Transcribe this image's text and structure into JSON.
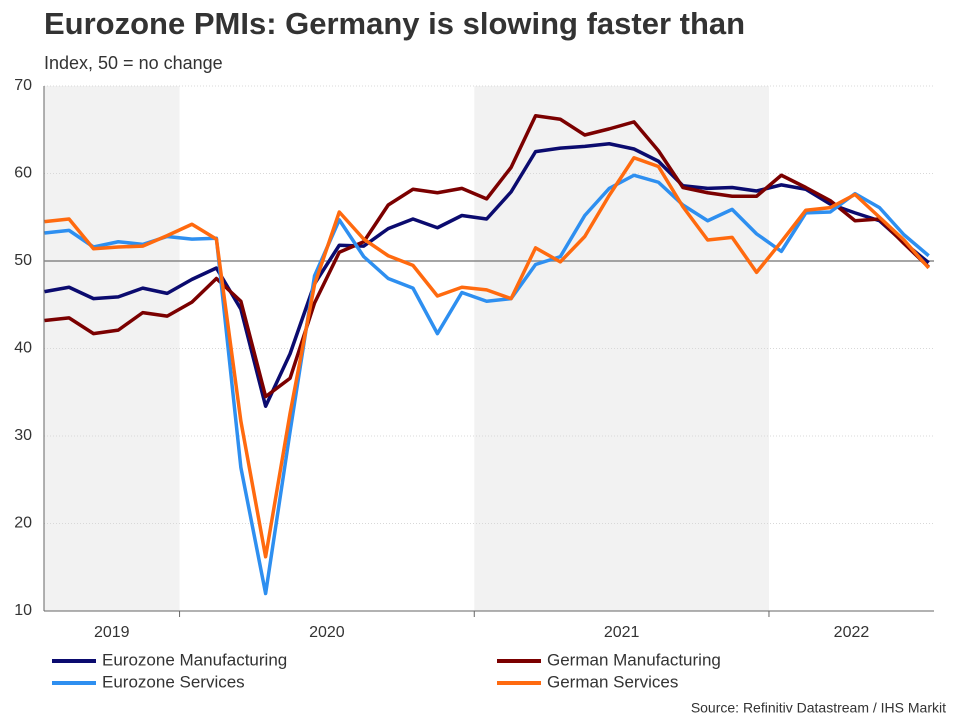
{
  "chart_data": {
    "type": "line",
    "title": "Eurozone PMIs: Germany is slowing faster than",
    "subtitle": "Index, 50 = no change",
    "source": "Source: Refinitiv Datastream / IHS Markit",
    "x": [
      2019.542,
      2019.625,
      2019.708,
      2019.792,
      2019.875,
      2019.958,
      2020.042,
      2020.125,
      2020.208,
      2020.292,
      2020.375,
      2020.458,
      2020.542,
      2020.625,
      2020.708,
      2020.792,
      2020.875,
      2020.958,
      2021.042,
      2021.125,
      2021.208,
      2021.292,
      2021.375,
      2021.458,
      2021.542,
      2021.625,
      2021.708,
      2021.792,
      2021.875,
      2021.958,
      2022.042,
      2022.125,
      2022.208,
      2022.292,
      2022.375,
      2022.458,
      2022.542
    ],
    "series": [
      {
        "name": "Eurozone Manufacturing",
        "color": "#0b0b6f",
        "values": [
          46.5,
          47.0,
          45.7,
          45.9,
          46.9,
          46.3,
          47.9,
          49.2,
          44.5,
          33.4,
          39.4,
          47.4,
          51.8,
          51.7,
          53.7,
          54.8,
          53.8,
          55.2,
          54.8,
          57.9,
          62.5,
          62.9,
          63.1,
          63.4,
          62.8,
          61.4,
          58.6,
          58.3,
          58.4,
          58.0,
          58.7,
          58.2,
          56.5,
          55.5,
          54.6,
          52.1,
          49.8
        ]
      },
      {
        "name": "German Manufacturing",
        "color": "#7b0000",
        "values": [
          43.2,
          43.5,
          41.7,
          42.1,
          44.1,
          43.7,
          45.3,
          48.0,
          45.4,
          34.5,
          36.6,
          45.2,
          51.0,
          52.2,
          56.4,
          58.2,
          57.8,
          58.3,
          57.1,
          60.7,
          66.6,
          66.2,
          64.4,
          65.1,
          65.9,
          62.6,
          58.4,
          57.8,
          57.4,
          57.4,
          59.8,
          58.4,
          56.9,
          54.6,
          54.8,
          52.0,
          49.3
        ]
      },
      {
        "name": "Eurozone Services",
        "color": "#2e8ff0",
        "values": [
          53.2,
          53.5,
          51.6,
          52.2,
          51.9,
          52.8,
          52.5,
          52.6,
          26.4,
          12.0,
          30.5,
          48.3,
          54.7,
          50.5,
          48.0,
          46.9,
          41.7,
          46.4,
          45.4,
          45.7,
          49.6,
          50.5,
          55.2,
          58.3,
          59.8,
          59.0,
          56.4,
          54.6,
          55.9,
          53.1,
          51.1,
          55.5,
          55.6,
          57.7,
          56.1,
          53.0,
          50.6
        ]
      },
      {
        "name": "German Services",
        "color": "#ff6a0f",
        "values": [
          54.5,
          54.8,
          51.4,
          51.6,
          51.7,
          52.9,
          54.2,
          52.5,
          31.7,
          16.2,
          32.6,
          47.3,
          55.6,
          52.5,
          50.6,
          49.5,
          46.0,
          47.0,
          46.7,
          45.7,
          51.5,
          49.9,
          52.8,
          57.5,
          61.8,
          60.8,
          56.2,
          52.4,
          52.7,
          48.7,
          52.2,
          55.8,
          56.1,
          57.6,
          55.0,
          52.4,
          49.2
        ]
      }
    ],
    "periods": [
      {
        "label": "2019",
        "start": 2019,
        "end": 2020,
        "shaded": true
      },
      {
        "label": "2020",
        "start": 2020,
        "end": 2021,
        "shaded": false
      },
      {
        "label": "2021",
        "start": 2021,
        "end": 2022,
        "shaded": true
      },
      {
        "label": "2022",
        "start": 2022,
        "end": 2023,
        "shaded": false
      }
    ],
    "xlim": [
      2019.54,
      2022.56
    ],
    "xticks": [
      2020,
      2021,
      2022
    ],
    "ylim": [
      10,
      70
    ],
    "yticks": [
      10,
      20,
      30,
      40,
      50,
      60,
      70
    ],
    "reference_line": 50,
    "grid": true,
    "legend": "bottom"
  }
}
